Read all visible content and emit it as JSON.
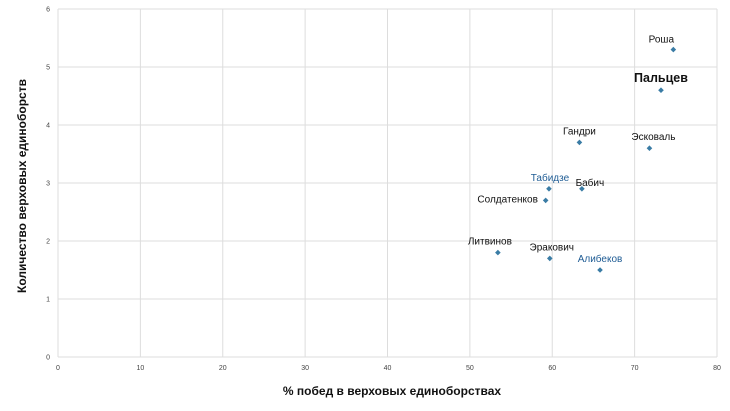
{
  "chart_data": {
    "type": "scatter",
    "title": "",
    "xlabel": "% побед в верховых единоборствах",
    "ylabel": "Количество верховых единоборств",
    "xlim": [
      0,
      80
    ],
    "ylim": [
      0,
      6
    ],
    "x_ticks": [
      "0",
      "10",
      "20",
      "30",
      "40",
      "50",
      "60",
      "70",
      "80"
    ],
    "y_ticks": [
      "0",
      "1",
      "2",
      "3",
      "4",
      "5",
      "6"
    ],
    "grid": true,
    "colors": {
      "marker": "#3a7ca5",
      "label_default": "#111111",
      "label_highlight": "#1f5c94",
      "grid": "#dddddd"
    },
    "points": [
      {
        "label": "Роша",
        "x": 74.7,
        "y": 5.3
      },
      {
        "label": "Пальцев",
        "x": 73.2,
        "y": 4.6,
        "emphasis": "large"
      },
      {
        "label": "Гандри",
        "x": 63.3,
        "y": 3.7
      },
      {
        "label": "Эсковаль",
        "x": 71.8,
        "y": 3.6
      },
      {
        "label": "Табидзе",
        "x": 59.6,
        "y": 2.9,
        "highlight": true
      },
      {
        "label": "Бабич",
        "x": 63.6,
        "y": 2.9
      },
      {
        "label": "Солдатенков",
        "x": 59.2,
        "y": 2.7
      },
      {
        "label": "Литвинов",
        "x": 53.4,
        "y": 1.8
      },
      {
        "label": "Эракович",
        "x": 59.7,
        "y": 1.7
      },
      {
        "label": "Алибеков",
        "x": 65.8,
        "y": 1.5,
        "highlight": true
      }
    ]
  }
}
